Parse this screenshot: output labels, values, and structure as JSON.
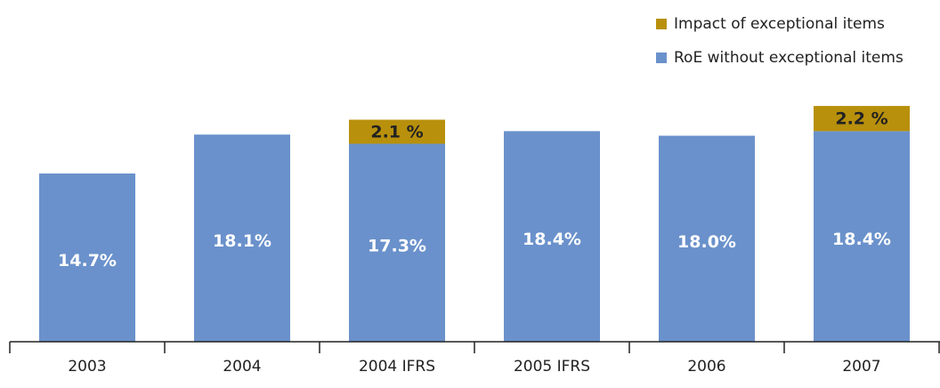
{
  "chart_data": {
    "type": "stacked_bar",
    "categories": [
      "2003",
      "2004",
      "2004 IFRS",
      "2005 IFRS",
      "2006",
      "2007"
    ],
    "series": [
      {
        "name": "RoE without exceptional items",
        "color": "#6a91cb",
        "values": [
          14.7,
          18.1,
          17.3,
          18.4,
          18.0,
          18.4
        ],
        "value_labels": [
          "14.7%",
          "18.1%",
          "17.3%",
          "18.4%",
          "18.0%",
          "18.4%"
        ]
      },
      {
        "name": "Impact of exceptional items",
        "color": "#b8900c",
        "values": [
          null,
          null,
          2.1,
          null,
          null,
          2.2
        ],
        "value_labels": [
          null,
          null,
          "2.1 %",
          null,
          null,
          "2.2 %"
        ]
      }
    ],
    "ylim": [
      0,
      25
    ],
    "legend": "top-right"
  }
}
